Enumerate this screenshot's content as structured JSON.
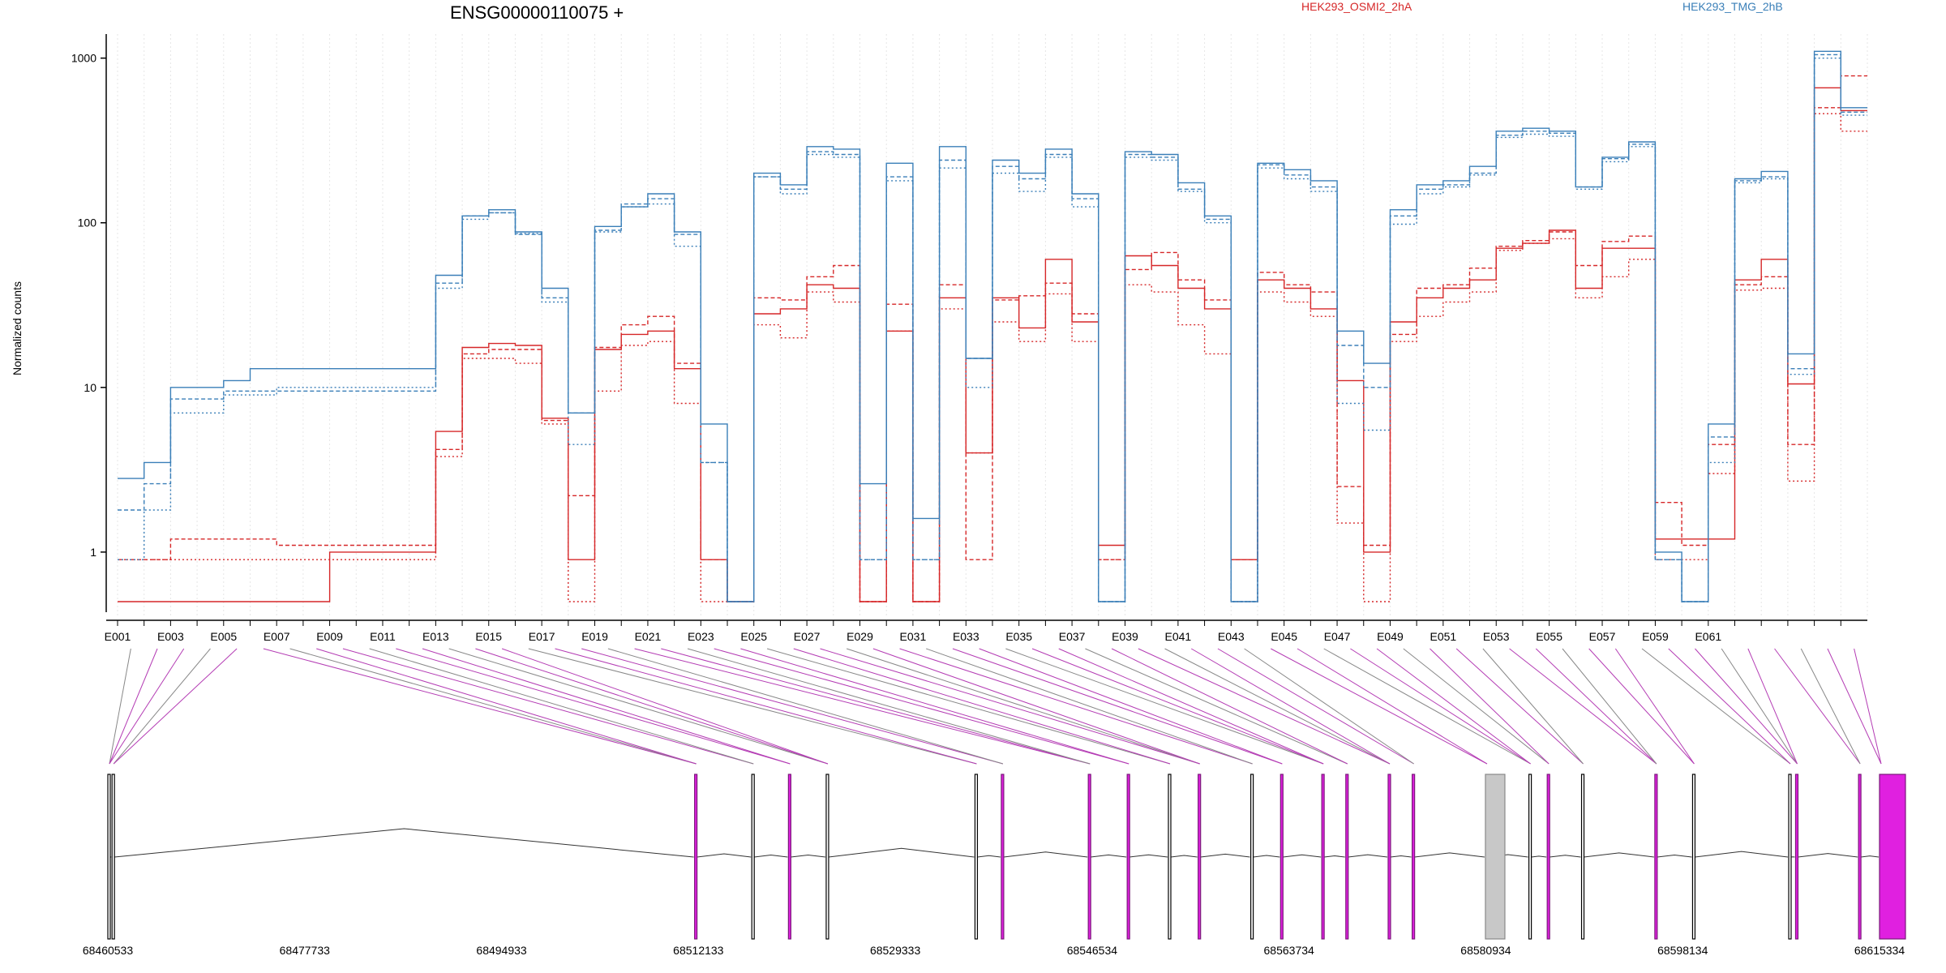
{
  "chart_data": {
    "type": "line",
    "title": "ENSG00000110075 +",
    "ylabel": "Normalized counts",
    "yscale": "log",
    "ylim": [
      0.5,
      1400
    ],
    "yticks": [
      "1",
      "10",
      "100",
      "1000"
    ],
    "ytick_values": [
      1,
      10,
      100,
      1000
    ],
    "legend_placement": "top",
    "grid": "vertical dotted lines at each exon",
    "colors": {
      "HEK293_OSMI2_2hA": "#d62728",
      "HEK293_TMG_2hB": "#3a7fb8",
      "highlight": "#e020e0",
      "gray_exon": "#c8c8c8"
    },
    "exon_labels": [
      "E001",
      "E003",
      "E005",
      "E007",
      "E009",
      "E011",
      "E013",
      "E015",
      "E017",
      "E019",
      "E021",
      "E023",
      "E025",
      "E027",
      "E029",
      "E031",
      "E033",
      "E035",
      "E037",
      "E039",
      "E041",
      "E043",
      "E045",
      "E047",
      "E049",
      "E051",
      "E053",
      "E055",
      "E057",
      "E059",
      "E061"
    ],
    "coord_labels": [
      "68460533",
      "68477733",
      "68494933",
      "68512133",
      "68529333",
      "68546534",
      "68563734",
      "68580934",
      "68598134",
      "68615334"
    ],
    "coord_range": [
      68460533,
      68615334
    ],
    "series": [
      {
        "name": "HEK293_OSMI2_2hA",
        "color": "#d62728",
        "replicates": [
          [
            0.5,
            0.5,
            0.5,
            0.5,
            0.5,
            0.5,
            0.5,
            0.5,
            1.0,
            1.0,
            1.0,
            1.0,
            5.4,
            17.5,
            18.5,
            18.0,
            6.5,
            0.9,
            17.0,
            21.0,
            22.0,
            13.0,
            0.9,
            0.5,
            28.0,
            30.0,
            42.0,
            40.0,
            0.5,
            22.0,
            0.5,
            35.0,
            4.0,
            35.0,
            23.0,
            60.0,
            25.0,
            1.1,
            63.0,
            55.0,
            40.0,
            30.0,
            0.9,
            45.0,
            40.0,
            30.0,
            11.0,
            1.0,
            25.0,
            35.0,
            40.0,
            45.0,
            70.0,
            75.0,
            90.0,
            40.0,
            70.0,
            70.0,
            1.2,
            1.2,
            1.2,
            45.0,
            60.0,
            10.5,
            660.0,
            480.0
          ],
          [
            0.9,
            0.9,
            1.2,
            1.2,
            1.2,
            1.2,
            1.1,
            1.1,
            1.1,
            1.1,
            1.1,
            1.1,
            4.2,
            16.0,
            17.0,
            17.0,
            6.3,
            2.2,
            17.5,
            24.0,
            27.0,
            14.0,
            0.9,
            0.5,
            35.0,
            34.0,
            47.0,
            55.0,
            0.5,
            32.0,
            0.5,
            42.0,
            0.9,
            34.0,
            36.0,
            43.0,
            28.0,
            0.9,
            52.0,
            66.0,
            45.0,
            34.0,
            0.9,
            50.0,
            42.0,
            38.0,
            2.5,
            1.1,
            21.0,
            40.0,
            42.0,
            53.0,
            72.0,
            78.0,
            88.0,
            55.0,
            77.0,
            83.0,
            2.0,
            1.1,
            4.5,
            42.0,
            47.0,
            4.5,
            500.0,
            780.0
          ],
          [
            0.9,
            0.9,
            0.9,
            0.9,
            0.9,
            0.9,
            0.9,
            0.9,
            0.9,
            0.9,
            0.9,
            0.9,
            3.8,
            15.0,
            15.0,
            14.0,
            6.0,
            0.5,
            9.5,
            18.0,
            19.0,
            8.0,
            0.5,
            0.5,
            24.0,
            20.0,
            38.0,
            33.0,
            0.5,
            22.0,
            0.5,
            30.0,
            4.0,
            25.0,
            19.0,
            37.0,
            19.0,
            0.9,
            42.0,
            38.0,
            24.0,
            16.0,
            0.5,
            38.0,
            33.0,
            27.0,
            1.5,
            0.5,
            19.0,
            27.0,
            33.0,
            38.0,
            68.0,
            75.0,
            80.0,
            35.0,
            47.0,
            60.0,
            0.9,
            0.9,
            3.0,
            39.0,
            40.0,
            2.7,
            460.0,
            360.0
          ]
        ]
      },
      {
        "name": "HEK293_TMG_2hB",
        "color": "#3a7fb8",
        "replicates": [
          [
            2.8,
            3.5,
            10.0,
            10.0,
            11.0,
            13.0,
            13.0,
            13.0,
            13.0,
            13.0,
            13.0,
            13.0,
            48.0,
            110.0,
            120.0,
            88.0,
            40.0,
            7.0,
            95.0,
            125.0,
            150.0,
            88.0,
            6.0,
            0.5,
            200.0,
            170.0,
            290.0,
            280.0,
            2.6,
            230.0,
            1.6,
            290.0,
            15.0,
            240.0,
            200.0,
            280.0,
            150.0,
            0.5,
            270.0,
            260.0,
            175.0,
            110.0,
            0.5,
            230.0,
            210.0,
            180.0,
            22.0,
            14.0,
            120.0,
            170.0,
            180.0,
            220.0,
            360.0,
            375.0,
            360.0,
            165.0,
            250.0,
            310.0,
            1.0,
            0.5,
            6.0,
            185.0,
            205.0,
            16.0,
            1100.0,
            500.0
          ],
          [
            1.8,
            2.6,
            8.5,
            8.5,
            9.5,
            9.5,
            9.5,
            9.5,
            9.5,
            9.5,
            9.5,
            9.5,
            43.0,
            110.0,
            115.0,
            85.0,
            35.0,
            7.0,
            90.0,
            130.0,
            140.0,
            85.0,
            3.5,
            0.5,
            190.0,
            160.0,
            270.0,
            260.0,
            0.9,
            190.0,
            0.9,
            240.0,
            15.0,
            220.0,
            185.0,
            260.0,
            140.0,
            0.5,
            260.0,
            250.0,
            160.0,
            105.0,
            0.5,
            225.0,
            195.0,
            165.0,
            18.0,
            10.0,
            110.0,
            160.0,
            170.0,
            200.0,
            340.0,
            360.0,
            350.0,
            165.0,
            245.0,
            300.0,
            0.9,
            0.5,
            5.0,
            180.0,
            190.0,
            13.0,
            1050.0,
            470.0
          ],
          [
            0.9,
            1.8,
            7.0,
            7.0,
            9.0,
            9.0,
            10.0,
            10.0,
            10.0,
            10.0,
            10.0,
            10.0,
            40.0,
            105.0,
            115.0,
            86.0,
            33.0,
            4.5,
            88.0,
            125.0,
            130.0,
            72.0,
            3.5,
            0.5,
            190.0,
            150.0,
            260.0,
            250.0,
            0.9,
            180.0,
            0.9,
            215.0,
            10.0,
            200.0,
            155.0,
            250.0,
            125.0,
            0.5,
            250.0,
            240.0,
            155.0,
            100.0,
            0.5,
            215.0,
            185.0,
            155.0,
            8.0,
            5.5,
            98.0,
            150.0,
            165.0,
            195.0,
            330.0,
            345.0,
            335.0,
            160.0,
            235.0,
            290.0,
            0.9,
            0.5,
            3.5,
            175.0,
            185.0,
            12.0,
            1000.0,
            450.0
          ]
        ]
      }
    ],
    "gene_model": {
      "exon_starts_at": [
        68460533,
        68460900,
        68511800,
        68516800,
        68520000,
        68523300,
        68536300,
        68538600,
        68546200,
        68549600,
        68553200,
        68555800,
        68560400,
        68563000,
        68566600,
        68568700,
        68572400,
        68574500,
        68580900,
        68584700,
        68586300,
        68589300,
        68595700,
        68599000,
        68607400,
        68608000,
        68613500,
        68615334
      ],
      "highlight_exons": [
        68511800,
        68520000,
        68538600,
        68546200,
        68549600,
        68555800,
        68563000,
        68566600,
        68568700,
        68572400,
        68574500,
        68586300,
        68595700,
        68608000,
        68613500
      ]
    }
  }
}
